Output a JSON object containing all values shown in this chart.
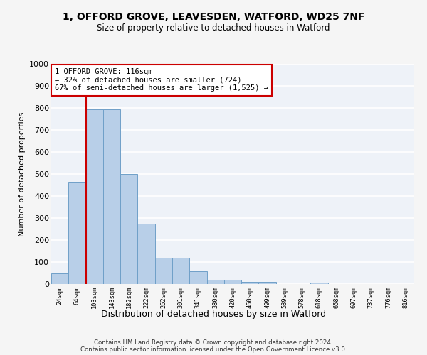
{
  "title_line1": "1, OFFORD GROVE, LEAVESDEN, WATFORD, WD25 7NF",
  "title_line2": "Size of property relative to detached houses in Watford",
  "xlabel": "Distribution of detached houses by size in Watford",
  "ylabel": "Number of detached properties",
  "categories": [
    "24sqm",
    "64sqm",
    "103sqm",
    "143sqm",
    "182sqm",
    "222sqm",
    "262sqm",
    "301sqm",
    "341sqm",
    "380sqm",
    "420sqm",
    "460sqm",
    "499sqm",
    "539sqm",
    "578sqm",
    "618sqm",
    "658sqm",
    "697sqm",
    "737sqm",
    "776sqm",
    "816sqm"
  ],
  "values": [
    50,
    460,
    795,
    795,
    500,
    275,
    120,
    120,
    57,
    20,
    18,
    10,
    10,
    0,
    0,
    8,
    0,
    0,
    0,
    0,
    0
  ],
  "bar_color": "#b8cfe8",
  "bar_edge_color": "#6fa0c8",
  "annotation_text": "1 OFFORD GROVE: 116sqm\n← 32% of detached houses are smaller (724)\n67% of semi-detached houses are larger (1,525) →",
  "annotation_box_color": "#ffffff",
  "annotation_box_edge_color": "#cc0000",
  "vline_color": "#cc0000",
  "ylim": [
    0,
    1000
  ],
  "yticks": [
    0,
    100,
    200,
    300,
    400,
    500,
    600,
    700,
    800,
    900,
    1000
  ],
  "bg_color": "#eef2f8",
  "grid_color": "#ffffff",
  "fig_bg_color": "#f5f5f5",
  "footer_line1": "Contains HM Land Registry data © Crown copyright and database right 2024.",
  "footer_line2": "Contains public sector information licensed under the Open Government Licence v3.0."
}
